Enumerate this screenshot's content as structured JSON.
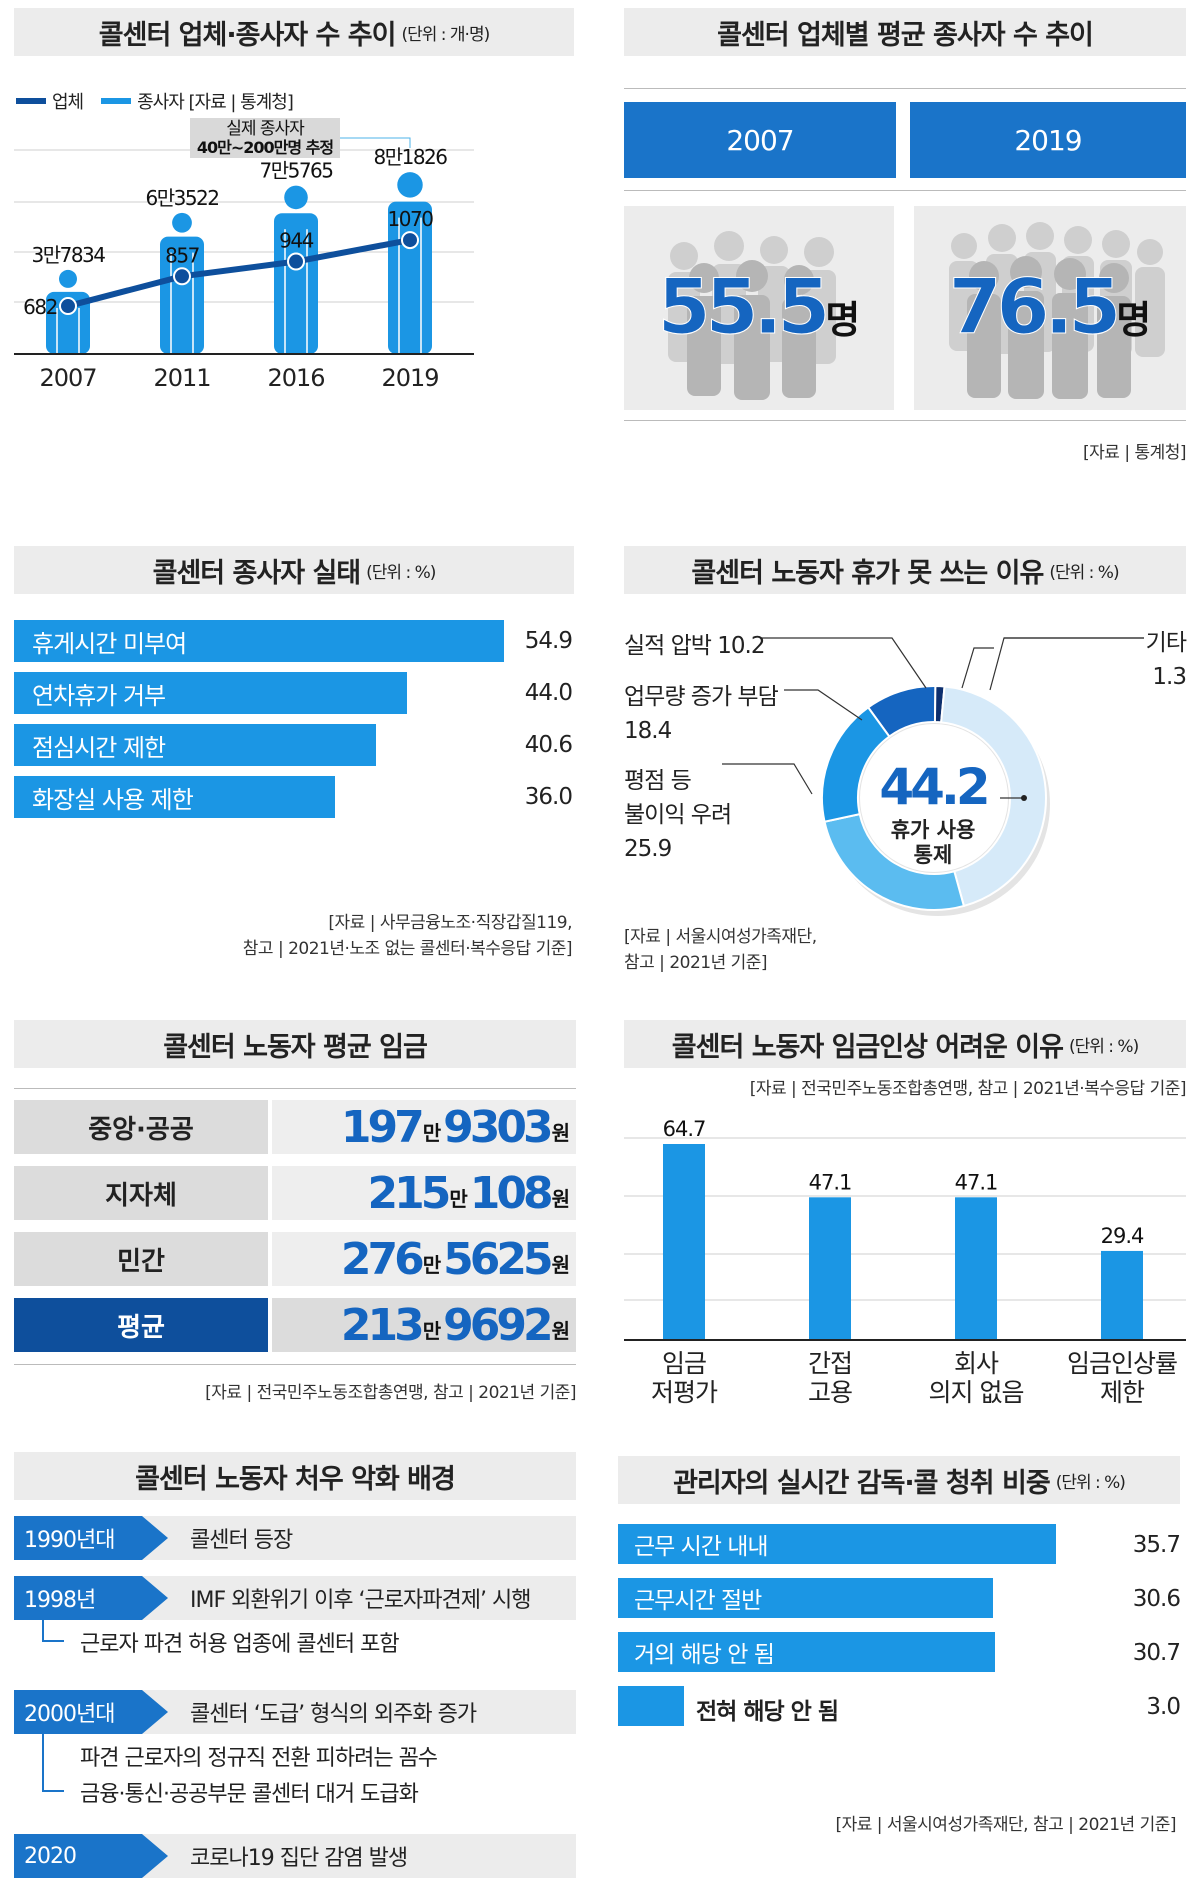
{
  "panels": {
    "trend": {
      "title": "콜센터 업체·종사자 수 추이",
      "unit": "(단위 : 개·명)",
      "legend": [
        {
          "label": "업체",
          "color": "#0e4f9c"
        },
        {
          "label": "종사자 [자료 | 통계청]",
          "color": "#1b96e4"
        }
      ],
      "callout": [
        "실제 종사자",
        "40만~200만명 추정"
      ]
    },
    "avg_workers": {
      "title": "콜센터 업체별 평균 종사자 수 추이",
      "source": "[자료 | 통계청]",
      "items": [
        {
          "year": "2007",
          "value": "55.5",
          "unit": "명"
        },
        {
          "year": "2019",
          "value": "76.5",
          "unit": "명"
        }
      ]
    },
    "conditions": {
      "title": "콜센터 종사자 실태",
      "unit": "(단위 : %)",
      "source_lines": [
        "[자료 | 사무금융노조·직장갑질119,",
        "참고 | 2021년·노조 없는 콜센터·복수응답 기준]"
      ]
    },
    "vacation": {
      "title": "콜센터 노동자 휴가 못 쓰는 이유",
      "unit": "(단위 : %)",
      "center_value": "44.2",
      "center_label": [
        "휴가 사용",
        "통제"
      ],
      "labels": {
        "pressure": "실적 압박 10.2",
        "workload": [
          "업무량 증가 부담",
          "18.4"
        ],
        "disadvantage": [
          "평점 등",
          "불이익 우려",
          "25.9"
        ],
        "other": [
          "기타",
          "1.3"
        ]
      },
      "source_lines": [
        "[자료 | 서울시여성가족재단,",
        "참고 | 2021년 기준]"
      ]
    },
    "wages": {
      "title": "콜센터 노동자 평균 임금",
      "source": "[자료 | 전국민주노동조합총연맹, 참고 | 2021년 기준]",
      "rows": [
        {
          "label": "중앙·공공",
          "man": "197",
          "man_unit": "만",
          "rest": "9303",
          "won": "원"
        },
        {
          "label": "지자체",
          "man": "215",
          "man_unit": "만",
          "rest": "108",
          "won": "원"
        },
        {
          "label": "민간",
          "man": "276",
          "man_unit": "만",
          "rest": "5625",
          "won": "원"
        },
        {
          "label": "평균",
          "man": "213",
          "man_unit": "만",
          "rest": "9692",
          "won": "원"
        }
      ]
    },
    "raise": {
      "title": "콜센터 노동자 임금인상 어려운 이유",
      "unit": "(단위 : %)",
      "source": "[자료 | 전국민주노동조합총연맹, 참고 | 2021년·복수응답 기준]"
    },
    "background": {
      "title": "콜센터 노동자 처우 악화 배경",
      "rows": [
        {
          "period": "1990년대",
          "text": "콜센터 등장",
          "subs": []
        },
        {
          "period": "1998년",
          "text": "IMF 외환위기 이후 ‘근로자파견제’ 시행",
          "subs": [
            "근로자 파견 허용 업종에 콜센터 포함"
          ]
        },
        {
          "period": "2000년대",
          "text": "콜센터 ‘도급’ 형식의 외주화 증가",
          "subs": [
            "파견 근로자의 정규직 전환 피하려는 꼼수",
            "금융·통신·공공부문 콜센터 대거 도급화"
          ]
        },
        {
          "period": "2020",
          "text": "코로나19 집단 감염 발생",
          "subs": []
        }
      ]
    },
    "monitoring": {
      "title": "관리자의 실시간 감독·콜 청취 비중",
      "unit": "(단위 : %)",
      "source": "[자료 | 서울시여성가족재단, 참고 | 2021년 기준]"
    }
  },
  "chart_data": [
    {
      "type": "line",
      "x": [
        "2007",
        "2011",
        "2016",
        "2019"
      ],
      "series": [
        {
          "name": "업체",
          "values": [
            682,
            857,
            944,
            1070
          ],
          "labels": [
            "682",
            "857",
            "944",
            "1070"
          ]
        },
        {
          "name": "종사자",
          "values": [
            37834,
            63522,
            75765,
            81826
          ],
          "labels": [
            "3만7834",
            "6만3522",
            "7만5765",
            "8만1826"
          ]
        }
      ]
    },
    {
      "type": "bar",
      "orientation": "horizontal",
      "categories": [
        "휴게시간 미부여",
        "연차휴가 거부",
        "점심시간 제한",
        "화장실 사용 제한"
      ],
      "values": [
        54.9,
        44.0,
        40.6,
        36.0
      ],
      "value_labels": [
        "54.9",
        "44.0",
        "40.6",
        "36.0"
      ]
    },
    {
      "type": "pie",
      "categories": [
        "휴가 사용 통제",
        "평점 등 불이익 우려",
        "업무량 증가 부담",
        "실적 압박",
        "기타"
      ],
      "values": [
        44.2,
        25.9,
        18.4,
        10.2,
        1.3
      ],
      "colors": [
        "#d6eaf9",
        "#5bbcf0",
        "#1b96e4",
        "#1565c0",
        "#0d2f6e"
      ]
    },
    {
      "type": "bar",
      "categories": [
        [
          "임금",
          "저평가"
        ],
        [
          "간접",
          "고용"
        ],
        [
          "회사",
          "의지 없음"
        ],
        [
          "임금인상률",
          "제한"
        ]
      ],
      "values": [
        64.7,
        47.1,
        47.1,
        29.4
      ],
      "value_labels": [
        "64.7",
        "47.1",
        "47.1",
        "29.4"
      ]
    },
    {
      "type": "bar",
      "orientation": "horizontal",
      "categories": [
        "근무 시간 내내",
        "근무시간 절반",
        "거의 해당 안 됨",
        "전혀 해당 안 됨"
      ],
      "values": [
        35.7,
        30.6,
        30.7,
        3.0
      ],
      "value_labels": [
        "35.7",
        "30.6",
        "30.7",
        "3.0"
      ]
    }
  ]
}
